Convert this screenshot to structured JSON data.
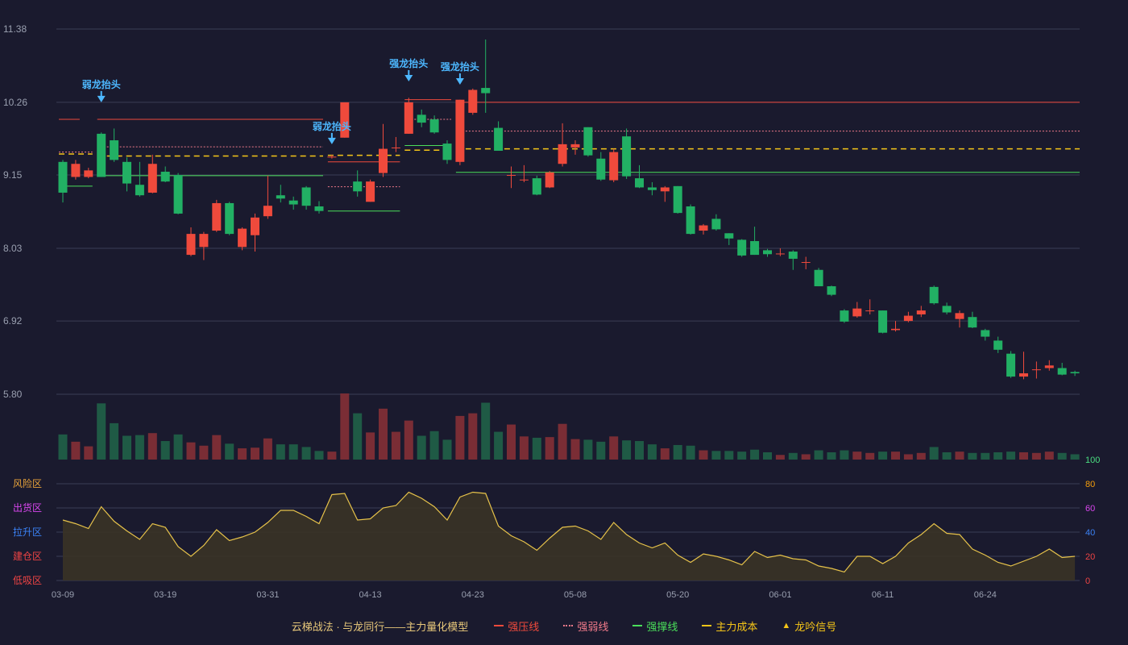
{
  "colors": {
    "background": "#1a1a2e",
    "up": "#ef4a3c",
    "down": "#22b064",
    "grid": "#3a3d55",
    "axis_text": "#9aa0b0",
    "strong_press": "#ef4a3c",
    "strong_weak": "#f07a8a",
    "strong_support": "#4ade5a",
    "main_cost": "#f5c518",
    "signal": "#4db8ff",
    "osc_line": "#e6c24a",
    "osc_fill": "#3a3326"
  },
  "chart_data": {
    "type": "candlestick",
    "price_axis": {
      "ticks": [
        "11.38",
        "10.26",
        "9.15",
        "8.03",
        "6.92",
        "5.80"
      ],
      "range": [
        5.8,
        11.38
      ]
    },
    "x_ticks": [
      {
        "i": 0,
        "label": "03-09"
      },
      {
        "i": 8,
        "label": "03-19"
      },
      {
        "i": 16,
        "label": "03-31"
      },
      {
        "i": 24,
        "label": "04-13"
      },
      {
        "i": 32,
        "label": "04-23"
      },
      {
        "i": 40,
        "label": "05-08"
      },
      {
        "i": 48,
        "label": "05-20"
      },
      {
        "i": 56,
        "label": "06-01"
      },
      {
        "i": 64,
        "label": "06-11"
      },
      {
        "i": 72,
        "label": "06-24"
      }
    ],
    "candles": [
      [
        9.35,
        8.88,
        9.38,
        8.73
      ],
      [
        9.12,
        9.32,
        9.38,
        9.08
      ],
      [
        9.12,
        9.22,
        9.26,
        9.1
      ],
      [
        9.78,
        9.12,
        9.8,
        9.12
      ],
      [
        9.68,
        9.38,
        9.86,
        9.35
      ],
      [
        9.35,
        9.02,
        9.42,
        8.9
      ],
      [
        9.0,
        8.84,
        9.35,
        8.82
      ],
      [
        8.88,
        9.32,
        9.46,
        8.87
      ],
      [
        9.2,
        9.05,
        9.28,
        9.04
      ],
      [
        9.15,
        8.56,
        9.18,
        8.55
      ],
      [
        7.93,
        8.25,
        8.35,
        7.91
      ],
      [
        8.05,
        8.25,
        8.28,
        7.85
      ],
      [
        8.3,
        8.72,
        8.77,
        8.28
      ],
      [
        8.72,
        8.25,
        8.74,
        8.23
      ],
      [
        8.05,
        8.33,
        8.35,
        8.0
      ],
      [
        8.23,
        8.5,
        8.56,
        7.98
      ],
      [
        8.52,
        8.68,
        9.14,
        8.48
      ],
      [
        8.84,
        8.79,
        9.0,
        8.73
      ],
      [
        8.76,
        8.7,
        8.82,
        8.62
      ],
      [
        8.96,
        8.68,
        8.98,
        8.62
      ],
      [
        8.67,
        8.6,
        8.75,
        8.56
      ],
      [
        9.43,
        9.43,
        9.46,
        9.4
      ],
      [
        9.72,
        10.26,
        10.26,
        9.72
      ],
      [
        9.05,
        8.9,
        9.22,
        8.82
      ],
      [
        8.74,
        9.05,
        9.08,
        8.74
      ],
      [
        9.18,
        9.55,
        9.93,
        9.12
      ],
      [
        9.57,
        9.57,
        9.73,
        9.5
      ],
      [
        9.78,
        10.26,
        10.33,
        9.78
      ],
      [
        10.07,
        9.95,
        10.15,
        9.88
      ],
      [
        10.0,
        9.8,
        10.06,
        9.78
      ],
      [
        9.63,
        9.38,
        9.68,
        9.32
      ],
      [
        9.35,
        10.3,
        10.3,
        9.3
      ],
      [
        10.1,
        10.45,
        10.47,
        10.07
      ],
      [
        10.48,
        10.4,
        11.22,
        10.1
      ],
      [
        9.87,
        9.52,
        9.97,
        9.52
      ],
      [
        9.15,
        9.15,
        9.28,
        8.95
      ],
      [
        9.08,
        9.08,
        9.3,
        9.04
      ],
      [
        9.1,
        8.85,
        9.14,
        8.84
      ],
      [
        8.96,
        9.19,
        9.21,
        8.95
      ],
      [
        9.32,
        9.62,
        9.94,
        9.28
      ],
      [
        9.57,
        9.62,
        9.68,
        9.46
      ],
      [
        9.88,
        9.45,
        9.88,
        9.43
      ],
      [
        9.4,
        9.08,
        9.5,
        9.06
      ],
      [
        9.07,
        9.5,
        9.55,
        9.04
      ],
      [
        9.74,
        9.13,
        9.86,
        9.09
      ],
      [
        9.1,
        8.96,
        9.3,
        8.95
      ],
      [
        8.96,
        8.92,
        9.04,
        8.84
      ],
      [
        8.9,
        8.96,
        8.98,
        8.74
      ],
      [
        8.98,
        8.57,
        8.98,
        8.56
      ],
      [
        8.67,
        8.25,
        8.7,
        8.24
      ],
      [
        8.3,
        8.38,
        8.4,
        8.24
      ],
      [
        8.48,
        8.32,
        8.55,
        8.3
      ],
      [
        8.26,
        8.18,
        8.26,
        8.08
      ],
      [
        8.16,
        7.92,
        8.17,
        7.9
      ],
      [
        8.14,
        7.93,
        8.36,
        7.93
      ],
      [
        8.0,
        7.94,
        8.02,
        7.9
      ],
      [
        7.95,
        7.95,
        8.03,
        7.91
      ],
      [
        7.98,
        7.87,
        8.0,
        7.7
      ],
      [
        7.82,
        7.82,
        7.9,
        7.71
      ],
      [
        7.7,
        7.45,
        7.73,
        7.45
      ],
      [
        7.45,
        7.32,
        7.46,
        7.3
      ],
      [
        7.08,
        6.91,
        7.1,
        6.89
      ],
      [
        6.99,
        7.11,
        7.21,
        6.97
      ],
      [
        7.08,
        7.08,
        7.25,
        7.02
      ],
      [
        7.08,
        6.74,
        7.08,
        6.73
      ],
      [
        6.78,
        6.8,
        6.92,
        6.76
      ],
      [
        6.92,
        7.0,
        7.06,
        6.9
      ],
      [
        7.02,
        7.08,
        7.15,
        6.98
      ],
      [
        7.44,
        7.19,
        7.46,
        7.17
      ],
      [
        7.15,
        7.05,
        7.2,
        7.02
      ],
      [
        6.95,
        7.04,
        7.08,
        6.82
      ],
      [
        6.98,
        6.82,
        7.06,
        6.81
      ],
      [
        6.78,
        6.68,
        6.8,
        6.62
      ],
      [
        6.62,
        6.48,
        6.68,
        6.43
      ],
      [
        6.42,
        6.07,
        6.46,
        6.05
      ],
      [
        6.07,
        6.12,
        6.45,
        6.03
      ],
      [
        6.17,
        6.18,
        6.3,
        6.04
      ],
      [
        6.2,
        6.24,
        6.32,
        6.16
      ],
      [
        6.2,
        6.1,
        6.28,
        6.09
      ],
      [
        6.14,
        6.12,
        6.16,
        6.08
      ]
    ],
    "volume_rel": [
      0.38,
      0.27,
      0.2,
      0.85,
      0.55,
      0.36,
      0.37,
      0.4,
      0.28,
      0.38,
      0.26,
      0.21,
      0.37,
      0.24,
      0.17,
      0.18,
      0.32,
      0.23,
      0.23,
      0.19,
      0.13,
      0.12,
      1.0,
      0.7,
      0.41,
      0.77,
      0.42,
      0.59,
      0.36,
      0.43,
      0.3,
      0.66,
      0.7,
      0.86,
      0.42,
      0.53,
      0.35,
      0.33,
      0.34,
      0.54,
      0.31,
      0.3,
      0.27,
      0.35,
      0.29,
      0.28,
      0.23,
      0.17,
      0.22,
      0.21,
      0.14,
      0.13,
      0.13,
      0.12,
      0.15,
      0.11,
      0.07,
      0.1,
      0.08,
      0.14,
      0.11,
      0.14,
      0.12,
      0.1,
      0.12,
      0.12,
      0.08,
      0.1,
      0.19,
      0.11,
      0.12,
      0.1,
      0.1,
      0.11,
      0.12,
      0.11,
      0.1,
      0.12,
      0.1,
      0.08
    ],
    "oscillator": {
      "values": [
        50,
        47,
        43,
        61,
        49,
        41,
        34,
        47,
        44,
        28,
        20,
        29,
        42,
        33,
        36,
        40,
        48,
        58,
        58,
        53,
        47,
        71,
        72,
        50,
        51,
        60,
        62,
        73,
        68,
        61,
        50,
        69,
        73,
        72,
        45,
        37,
        32,
        25,
        35,
        44,
        45,
        41,
        34,
        48,
        38,
        31,
        27,
        31,
        21,
        15,
        22,
        20,
        17,
        13,
        24,
        19,
        21,
        18,
        17,
        12,
        10,
        7,
        20,
        20,
        14,
        20,
        31,
        38,
        47,
        39,
        38,
        26,
        21,
        15,
        12,
        16,
        20,
        26,
        19,
        20
      ],
      "axis_labels": [
        "100",
        "80",
        "60",
        "40",
        "20",
        "0"
      ],
      "zones": [
        "风险区",
        "出货区",
        "拉升区",
        "建仓区",
        "低吸区"
      ],
      "zone_colors": [
        "#e8a33a",
        "#d946ef",
        "#3b82f6",
        "#ef4444",
        "#ef4444"
      ],
      "axis_label_colors": [
        "#4ade80",
        "#f59e0b",
        "#d946ef",
        "#3b82f6",
        "#ef4444",
        "#ef4444"
      ]
    },
    "levels": [
      {
        "kind": "strong_press",
        "from": 0,
        "to": 1,
        "y": 10.0
      },
      {
        "kind": "strong_press",
        "from": 3,
        "to": 20,
        "y": 10.0
      },
      {
        "kind": "strong_weak",
        "from": 0,
        "to": 2,
        "y": 9.5
      },
      {
        "kind": "strong_weak",
        "from": 3,
        "to": 20,
        "y": 9.58
      },
      {
        "kind": "strong_weak",
        "from": 21,
        "to": 26,
        "y": 8.97
      },
      {
        "kind": "strong_weak",
        "from": 27,
        "to": 30,
        "y": 10.0
      },
      {
        "kind": "strong_weak",
        "from": 31,
        "to": 79,
        "y": 9.82
      },
      {
        "kind": "strong_support",
        "from": 0,
        "to": 2,
        "y": 8.98
      },
      {
        "kind": "strong_support",
        "from": 3,
        "to": 20,
        "y": 9.14
      },
      {
        "kind": "strong_support",
        "from": 21,
        "to": 26,
        "y": 8.6
      },
      {
        "kind": "strong_support",
        "from": 27,
        "to": 30,
        "y": 9.6
      },
      {
        "kind": "strong_support",
        "from": 31,
        "to": 79,
        "y": 9.19
      },
      {
        "kind": "main_cost",
        "from": 0,
        "to": 2,
        "y": 9.47
      },
      {
        "kind": "main_cost",
        "from": 3,
        "to": 20,
        "y": 9.44
      },
      {
        "kind": "main_cost",
        "from": 21,
        "to": 26,
        "y": 9.45
      },
      {
        "kind": "main_cost",
        "from": 27,
        "to": 30,
        "y": 9.53
      },
      {
        "kind": "main_cost",
        "from": 31,
        "to": 79,
        "y": 9.55
      },
      {
        "kind": "strong_press",
        "from": 21,
        "to": 26,
        "y": 9.35
      },
      {
        "kind": "strong_press",
        "from": 27,
        "to": 30,
        "y": 10.3
      },
      {
        "kind": "strong_press",
        "from": 31,
        "to": 79,
        "y": 10.26
      }
    ],
    "signals": [
      {
        "i": 3,
        "text": "弱龙抬头",
        "y": 10.26
      },
      {
        "i": 21,
        "text": "弱龙抬头",
        "y": 9.62
      },
      {
        "i": 27,
        "text": "强龙抬头",
        "y": 10.58
      },
      {
        "i": 31,
        "text": "强龙抬头",
        "y": 10.53
      }
    ]
  },
  "legend": {
    "title": "云梯战法 · 与龙同行——主力量化模型",
    "items": [
      {
        "label": "强压线",
        "color": "#ef4a3c",
        "style": "solid"
      },
      {
        "label": "强弱线",
        "color": "#f07a8a",
        "style": "dashed"
      },
      {
        "label": "强撑线",
        "color": "#4ade5a",
        "style": "solid"
      },
      {
        "label": "主力成本",
        "color": "#f5c518",
        "style": "dashed"
      },
      {
        "label": "龙吟信号",
        "color": "#f5c518",
        "style": "triangle"
      }
    ]
  }
}
